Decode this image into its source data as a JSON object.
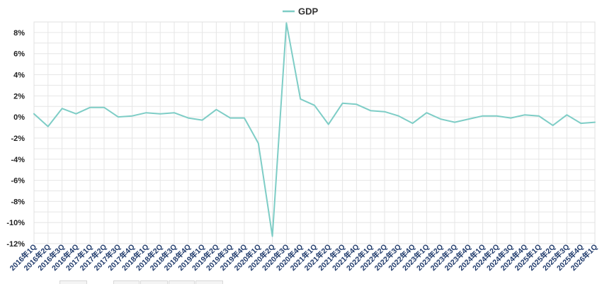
{
  "chart_data": {
    "type": "line",
    "title": "",
    "xlabel": "",
    "ylabel": "",
    "ylim": [
      -12,
      9
    ],
    "yticks": [
      "8%",
      "6%",
      "4%",
      "2%",
      "0%",
      "-2%",
      "-4%",
      "-6%",
      "-8%",
      "-10%",
      "-12%"
    ],
    "ytick_values": [
      8,
      6,
      4,
      2,
      0,
      -2,
      -4,
      -6,
      -8,
      -10,
      -12
    ],
    "grid": true,
    "legend_position": "top-center",
    "categories": [
      "2016年1Q",
      "2016年2Q",
      "2016年3Q",
      "2016年4Q",
      "2017年1Q",
      "2017年2Q",
      "2017年3Q",
      "2017年4Q",
      "2018年1Q",
      "2018年2Q",
      "2018年3Q",
      "2018年4Q",
      "2019年1Q",
      "2019年2Q",
      "2019年3Q",
      "2019年4Q",
      "2020年1Q",
      "2020年2Q",
      "2020年3Q",
      "2020年4Q",
      "2021年1Q",
      "2021年2Q",
      "2021年3Q",
      "2021年4Q",
      "2022年1Q",
      "2022年2Q",
      "2022年3Q",
      "2022年4Q",
      "2023年1Q",
      "2023年2Q",
      "2023年3Q",
      "2023年4Q",
      "2024年1Q",
      "2024年2Q",
      "2024年3Q",
      "2024年4Q",
      "2025年1Q",
      "2025年2Q",
      "2025年3Q",
      "2025年4Q",
      "2026年1Q"
    ],
    "series": [
      {
        "name": "GDP",
        "color": "#7ecdc6",
        "values": [
          0.3,
          -0.9,
          0.8,
          0.3,
          0.9,
          0.9,
          0.0,
          0.1,
          0.4,
          0.3,
          0.4,
          -0.1,
          -0.3,
          0.7,
          -0.1,
          -0.1,
          -2.5,
          -11.3,
          8.9,
          1.7,
          1.1,
          -0.7,
          1.3,
          1.2,
          0.6,
          0.5,
          0.1,
          -0.6,
          0.4,
          -0.2,
          -0.5,
          -0.2,
          0.1,
          0.1,
          -0.1,
          0.2,
          0.1,
          -0.8,
          0.2,
          -0.6,
          -0.5
        ]
      }
    ]
  }
}
